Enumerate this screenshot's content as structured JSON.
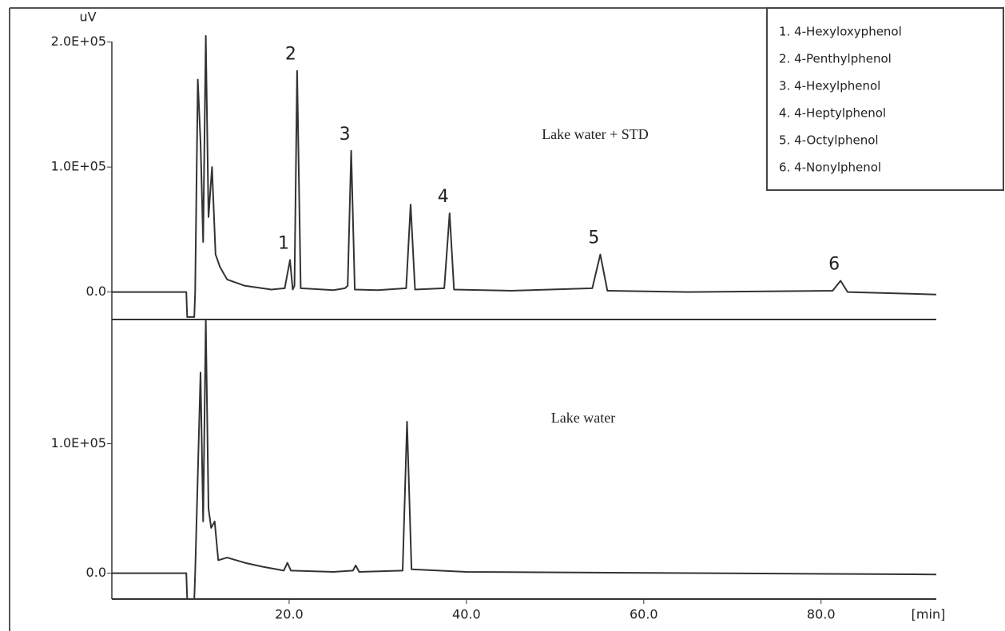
{
  "chart_data": [
    {
      "type": "line",
      "label": "Lake water + STD",
      "y_unit": "uV",
      "xlim": [
        0,
        93
      ],
      "ylim": [
        -22000,
        226000
      ],
      "yticks": [
        {
          "value": 0,
          "label": "0.0"
        },
        {
          "value": 100000,
          "label": "1.0E+05"
        },
        {
          "value": 200000,
          "label": "2.0E+05"
        }
      ],
      "series": [
        {
          "color": "#333333",
          "x": [
            0,
            8.4,
            8.5,
            9.3,
            9.4,
            9.7,
            10.0,
            10.3,
            10.6,
            10.9,
            11.3,
            11.7,
            12.2,
            12.6,
            13.0,
            15,
            18,
            19.5,
            20.1,
            20.4,
            20.6,
            20.9,
            21.3,
            25,
            26.3,
            26.6,
            27.0,
            27.4,
            30,
            33.2,
            33.7,
            34.2,
            37.5,
            38.1,
            38.6,
            45,
            54.2,
            55.1,
            55.9,
            65,
            81.3,
            82.2,
            83.0,
            93
          ],
          "values": [
            0,
            0,
            -20000,
            -20000,
            0,
            170000,
            120000,
            40000,
            205000,
            60000,
            100000,
            30000,
            20000,
            15000,
            10000,
            5000,
            2000,
            3000,
            25600,
            2000,
            5000,
            177000,
            3000,
            1500,
            3000,
            5000,
            113000,
            2000,
            1500,
            3000,
            70000,
            2000,
            3000,
            63000,
            2000,
            1000,
            3000,
            30000,
            1000,
            0,
            1000,
            9000,
            0,
            -2000
          ]
        }
      ],
      "annotations": [
        {
          "text": "1",
          "x": 20.1,
          "y": 25600
        },
        {
          "text": "2",
          "x": 20.9,
          "y": 177000
        },
        {
          "text": "3",
          "x": 27.0,
          "y": 113000
        },
        {
          "text": "4",
          "x": 38.1,
          "y": 63000
        },
        {
          "text": "5",
          "x": 55.1,
          "y": 30000
        },
        {
          "text": "6",
          "x": 82.2,
          "y": 9000
        }
      ],
      "legend_items": [
        "1. 4-Hexyloxyphenol",
        "2. 4-Penthylphenol",
        "3. 4-Hexylphenol",
        "4. 4-Heptylphenol",
        "5. 4-Octylphenol",
        "6. 4-Nonylphenol"
      ]
    },
    {
      "type": "line",
      "label": "Lake water",
      "x_unit": "[min]",
      "xlim": [
        0,
        93
      ],
      "ylim": [
        -20000,
        196000
      ],
      "xticks": [
        {
          "value": 20,
          "label": "20.0"
        },
        {
          "value": 40,
          "label": "40.0"
        },
        {
          "value": 60,
          "label": "60.0"
        },
        {
          "value": 80,
          "label": "80.0"
        }
      ],
      "yticks": [
        {
          "value": 0,
          "label": "0.0"
        },
        {
          "value": 100000,
          "label": "1.0E+05"
        }
      ],
      "series": [
        {
          "color": "#333333",
          "x": [
            0,
            8.4,
            8.5,
            9.3,
            9.4,
            10.0,
            10.3,
            10.6,
            10.9,
            11.2,
            11.6,
            12.0,
            13,
            15,
            17,
            19.4,
            19.8,
            20.2,
            25,
            27.2,
            27.5,
            27.9,
            32.8,
            33.3,
            33.8,
            40,
            93
          ],
          "values": [
            0,
            0,
            -20000,
            -20000,
            0,
            155000,
            40000,
            196000,
            50000,
            35000,
            40000,
            10000,
            12000,
            8000,
            5000,
            2000,
            8000,
            2000,
            1000,
            2000,
            6000,
            1000,
            2000,
            117000,
            3000,
            1000,
            -1000
          ]
        }
      ]
    }
  ]
}
